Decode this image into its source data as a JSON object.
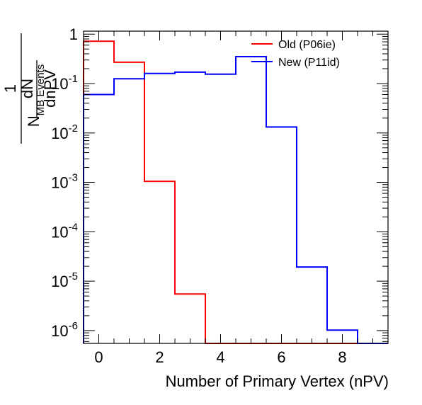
{
  "chart_data": {
    "type": "histogram",
    "xlabel": "Number of Primary Vertex (nPV)",
    "ylabel": {
      "numerator": "dN",
      "denominator": "dnPV",
      "prefactor_num": "1",
      "prefactor_den": "N",
      "prefactor_den_sub": "MB Events"
    },
    "x_tick_labels": [
      "0",
      "2",
      "4",
      "6",
      "8"
    ],
    "x_ticks": [
      0,
      2,
      4,
      6,
      8
    ],
    "y_ticks": [
      {
        "value": 1,
        "base": "1",
        "exp": ""
      },
      {
        "value": 0.1,
        "base": "10",
        "exp": "-1"
      },
      {
        "value": 0.01,
        "base": "10",
        "exp": "-2"
      },
      {
        "value": 0.001,
        "base": "10",
        "exp": "-3"
      },
      {
        "value": 0.0001,
        "base": "10",
        "exp": "-4"
      },
      {
        "value": 1e-05,
        "base": "10",
        "exp": "-5"
      },
      {
        "value": 1e-06,
        "base": "10",
        "exp": "-6"
      }
    ],
    "xlim": [
      -0.5,
      9.5
    ],
    "ylim": [
      5.5e-07,
      1.15
    ],
    "log_y": true,
    "bin_edges": [
      -0.5,
      0.5,
      1.5,
      2.5,
      3.5,
      4.5,
      5.5,
      6.5,
      7.5,
      8.5,
      9.5
    ],
    "series": [
      {
        "name": "Old (P06ie)",
        "color": "#ff0000",
        "values": [
          0.72,
          0.27,
          0.00105,
          5.5e-06,
          0,
          0,
          0,
          0,
          0,
          0
        ]
      },
      {
        "name": "New (P11id)",
        "color": "#0000ff",
        "values": [
          0.06,
          0.125,
          0.16,
          0.17,
          0.155,
          0.35,
          0.0132,
          1.93e-05,
          1.02e-06,
          0
        ]
      }
    ],
    "legend_position": "top-right"
  }
}
